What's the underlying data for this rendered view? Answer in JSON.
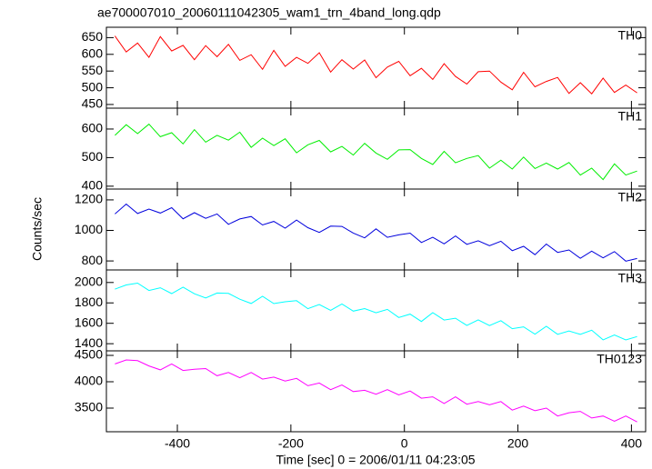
{
  "chart_data": {
    "type": "line",
    "title": "ae700007010_20060111042305_wam1_trn_4band_long.qdp",
    "xlabel": "Time [sec] 0 = 2006/01/11 04:23:05",
    "ylabel": "Counts/sec",
    "x": [
      -510,
      -490,
      -470,
      -450,
      -430,
      -410,
      -390,
      -370,
      -350,
      -330,
      -310,
      -290,
      -270,
      -250,
      -230,
      -210,
      -190,
      -170,
      -150,
      -130,
      -110,
      -90,
      -70,
      -50,
      -30,
      -10,
      10,
      30,
      50,
      70,
      90,
      110,
      130,
      150,
      170,
      190,
      210,
      230,
      250,
      270,
      290,
      310,
      330,
      350,
      370,
      390,
      410
    ],
    "xlim": [
      -525,
      425
    ],
    "xticks": [
      -400,
      -200,
      0,
      200,
      400
    ],
    "panels": [
      {
        "label": "TH0",
        "color": "#ff0000",
        "ylim": [
          439,
          681
        ],
        "yticks": [
          450,
          500,
          550,
          600,
          650
        ],
        "values": [
          655,
          607,
          634,
          591,
          653,
          610,
          627,
          584,
          626,
          593,
          630,
          582,
          599,
          555,
          612,
          564,
          591,
          573,
          605,
          547,
          584,
          556,
          583,
          530,
          562,
          579,
          536,
          558,
          525,
          572,
          534,
          511,
          548,
          550,
          517,
          494,
          546,
          503,
          519,
          531,
          483,
          515,
          482,
          529,
          486,
          508,
          485
        ]
      },
      {
        "label": "TH1",
        "color": "#00ee00",
        "ylim": [
          390,
          673
        ],
        "yticks": [
          400,
          500,
          600
        ],
        "values": [
          578,
          615,
          584,
          617,
          573,
          587,
          548,
          598,
          554,
          578,
          561,
          589,
          536,
          568,
          542,
          566,
          517,
          545,
          560,
          520,
          539,
          509,
          550,
          516,
          494,
          527,
          528,
          497,
          476,
          522,
          482,
          497,
          507,
          463,
          491,
          460,
          502,
          462,
          481,
          460,
          483,
          439,
          463,
          423,
          478,
          439,
          453
        ]
      },
      {
        "label": "TH2",
        "color": "#0000dd",
        "ylim": [
          741,
          1271
        ],
        "yticks": [
          800,
          1000,
          1200
        ],
        "values": [
          1108,
          1173,
          1111,
          1140,
          1114,
          1149,
          1076,
          1116,
          1079,
          1108,
          1040,
          1075,
          1091,
          1036,
          1059,
          1015,
          1068,
          1018,
          987,
          1028,
          1026,
          983,
          951,
          1010,
          955,
          971,
          982,
          921,
          955,
          912,
          964,
          909,
          932,
          900,
          929,
          867,
          896,
          841,
          911,
          856,
          872,
          817,
          864,
          820,
          861,
          799,
          816
        ]
      },
      {
        "label": "TH3",
        "color": "#00ffff",
        "ylim": [
          1330,
          2123
        ],
        "yticks": [
          1400,
          1600,
          1800,
          2000
        ],
        "values": [
          1935,
          1976,
          1994,
          1922,
          1948,
          1891,
          1955,
          1890,
          1849,
          1897,
          1893,
          1836,
          1794,
          1865,
          1793,
          1811,
          1822,
          1743,
          1784,
          1727,
          1790,
          1719,
          1744,
          1703,
          1736,
          1657,
          1690,
          1618,
          1704,
          1632,
          1650,
          1579,
          1634,
          1578,
          1626,
          1547,
          1565,
          1493,
          1571,
          1492,
          1525,
          1491,
          1532,
          1438,
          1486,
          1437,
          1470
        ]
      },
      {
        "label": "TH0123",
        "color": "#ff00ff",
        "ylim": [
          3052,
          4586
        ],
        "yticks": [
          3500,
          4000,
          4500
        ],
        "values": [
          4338,
          4413,
          4400,
          4300,
          4225,
          4338,
          4213,
          4238,
          4250,
          4113,
          4175,
          4075,
          4175,
          4050,
          4088,
          4013,
          4063,
          3925,
          3975,
          3850,
          3938,
          3813,
          3838,
          3763,
          3850,
          3750,
          3825,
          3688,
          3713,
          3588,
          3713,
          3575,
          3625,
          3563,
          3625,
          3463,
          3538,
          3450,
          3500,
          3350,
          3413,
          3438,
          3313,
          3350,
          3250,
          3350,
          3238
        ]
      }
    ]
  }
}
